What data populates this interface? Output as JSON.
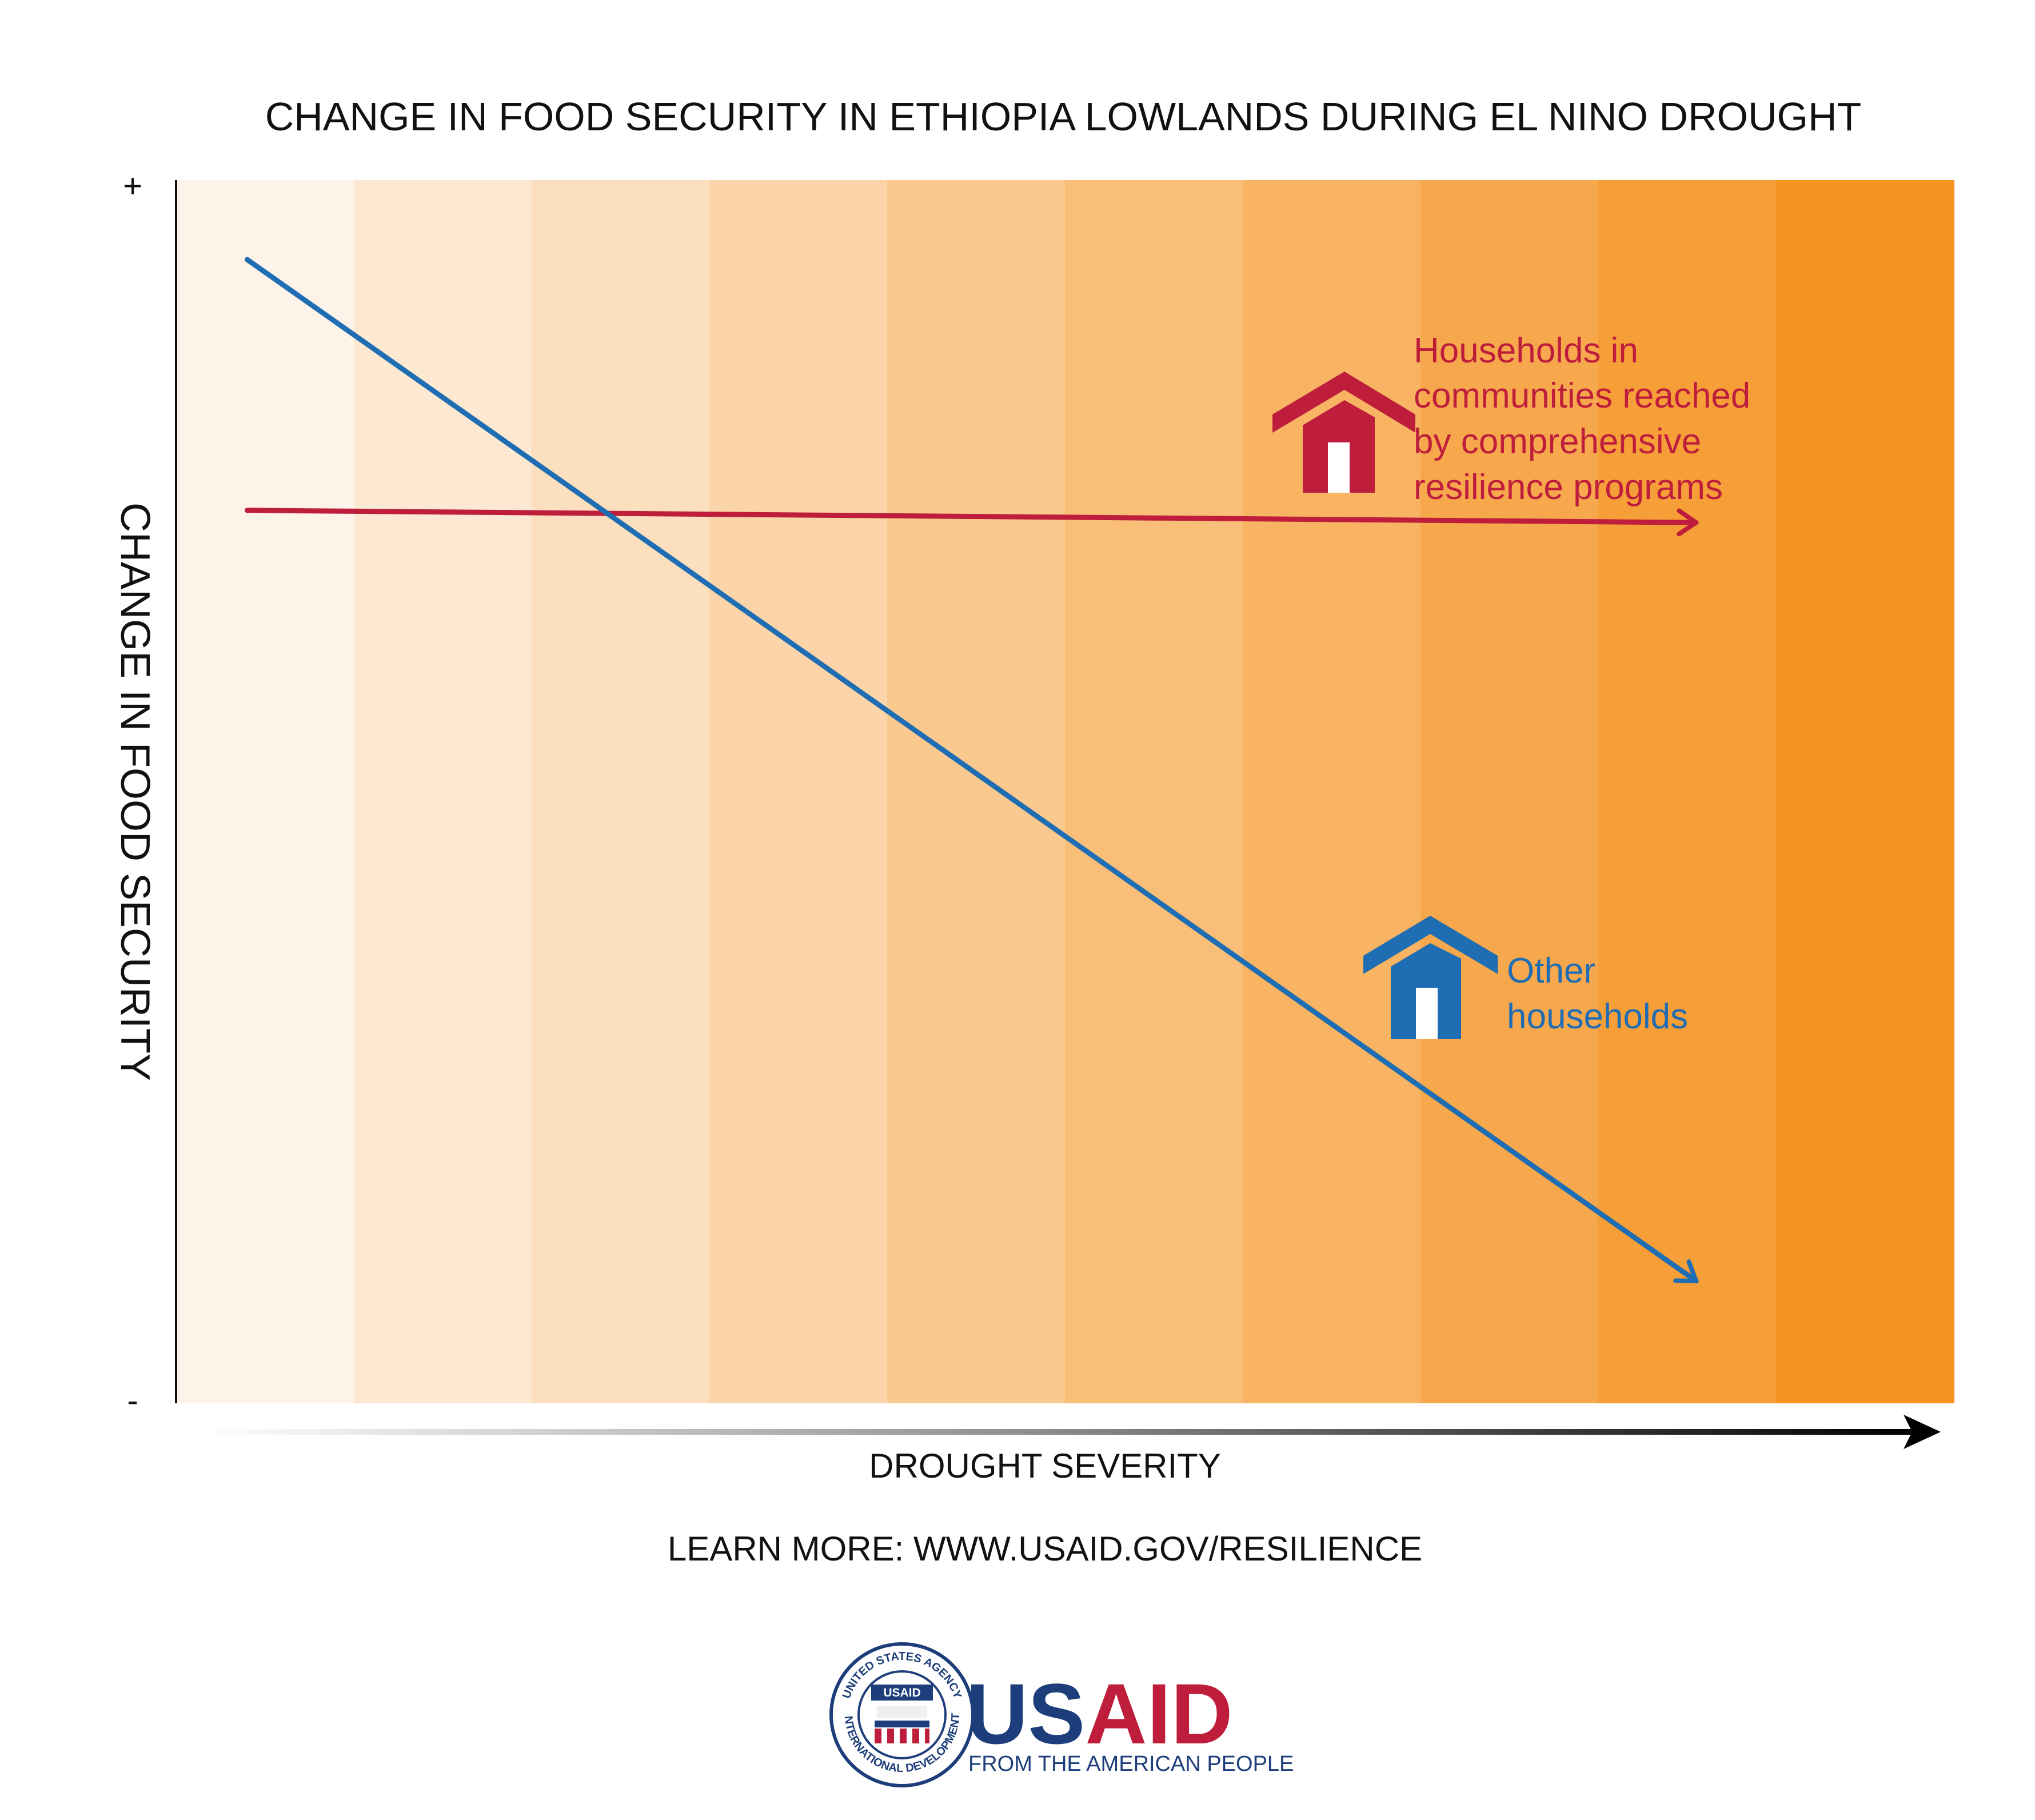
{
  "chart_data": {
    "type": "line",
    "title": "CHANGE IN FOOD SECURITY IN ETHIOPIA LOWLANDS DURING EL NINO DROUGHT",
    "xlabel": "DROUGHT SEVERITY",
    "ylabel": "CHANGE IN FOOD SECURITY",
    "y_top_tick": "+",
    "y_bottom_tick": "-",
    "xlim": [
      0,
      10
    ],
    "ylim": [
      0,
      10
    ],
    "background_bands": [
      "#fdf3e8",
      "#fde8d2",
      "#fcdfbe",
      "#fbd5a9",
      "#fac990",
      "#f9bf79",
      "#f8b463",
      "#f7a84d",
      "#f69e37",
      "#f69322"
    ],
    "series": [
      {
        "name": "Households in communities reached by comprehensive resilience programs",
        "color": "#be1e3c",
        "x": [
          0.4,
          8.55
        ],
        "y": [
          7.3,
          7.2
        ]
      },
      {
        "name": "Other households",
        "color": "#1f6db3",
        "x": [
          0.4,
          8.55
        ],
        "y": [
          9.35,
          1.0
        ]
      }
    ],
    "annotations": {
      "red_label_lines": [
        "Households in",
        "communities reached",
        "by comprehensive",
        "resilience programs"
      ],
      "blue_label_lines": [
        "Other",
        "households"
      ]
    }
  },
  "footer": {
    "learn_more": "LEARN MORE: WWW.USAID.GOV/RESILIENCE",
    "logo_wordmark_us": "US",
    "logo_wordmark_aid": "AID",
    "logo_tagline": "FROM THE AMERICAN PEOPLE",
    "seal_badge": "USAID",
    "seal_ring_top": "UNITED STATES AGENCY",
    "seal_ring_bottom": "INTERNATIONAL DEVELOPMENT"
  },
  "colors": {
    "red": "#be1e3c",
    "blue": "#1f6db3",
    "navy": "#1d3e7a"
  }
}
